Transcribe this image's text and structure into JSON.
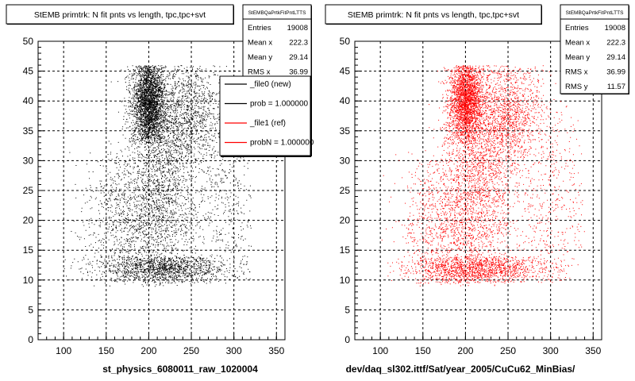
{
  "page": {
    "background": "#ffffff"
  },
  "chart_data": [
    {
      "type": "scatter",
      "title": "StEMB primtrk: N fit pnts vs length, tpc,tpc+svt",
      "xlabel": "st_physics_6080011_raw_1020004",
      "ylabel": "",
      "xlim": [
        70,
        360
      ],
      "ylim": [
        0,
        50
      ],
      "x_ticks": [
        100,
        150,
        200,
        250,
        300,
        350
      ],
      "y_ticks": [
        0,
        5,
        10,
        15,
        20,
        25,
        30,
        35,
        40,
        45,
        50
      ],
      "grid": true,
      "point_color": "#000000",
      "stats_box": {
        "name": "StEMBQaPrtkFitPntLTTS",
        "entries": [
          {
            "label": "Entries",
            "value": "19008"
          },
          {
            "label": "Mean x",
            "value": "222.3"
          },
          {
            "label": "Mean y",
            "value": "29.14"
          },
          {
            "label": "RMS x",
            "value": "36.99"
          }
        ]
      },
      "legend": {
        "placement": "top-right",
        "entries": [
          {
            "label": "_file0 (new)",
            "color": "#000000"
          },
          {
            "label": "prob = 1.000000",
            "color": "#000000"
          },
          {
            "label": "_file1 (ref)",
            "color": "#ff0000"
          },
          {
            "label": "probN = 1.000000",
            "color": "#ff0000"
          }
        ]
      },
      "series": [
        {
          "entries": 19008,
          "clusters": [
            {
              "x": 200,
              "y": 40,
              "sx": 10,
              "sy": 4,
              "weight": 0.33,
              "ymin": 33,
              "ymax": 46
            },
            {
              "x": 215,
              "y": 27,
              "sx": 22,
              "sy": 9,
              "weight": 0.22,
              "ymin": 9,
              "ymax": 46
            },
            {
              "x": 215,
              "y": 12,
              "sx": 40,
              "sy": 1.4,
              "weight": 0.17,
              "ymin": 9.5,
              "ymax": 14
            },
            {
              "x": 250,
              "y": 38,
              "sx": 22,
              "sy": 5,
              "weight": 0.13,
              "ymin": 28,
              "ymax": 46
            },
            {
              "x": 175,
              "y": 20,
              "sx": 25,
              "sy": 6,
              "weight": 0.1,
              "ymin": 9,
              "ymax": 32
            },
            {
              "x": 290,
              "y": 22,
              "sx": 20,
              "sy": 8,
              "weight": 0.05,
              "ymin": 10,
              "ymax": 36
            }
          ],
          "x_range": [
            100,
            320
          ]
        }
      ]
    },
    {
      "type": "scatter",
      "title": "StEMB primtrk: N fit pnts vs length, tpc,tpc+svt",
      "xlabel": "dev/daq_sl302.ittf/Sat/year_2005/CuCu62_MinBias/",
      "ylabel": "",
      "xlim": [
        70,
        360
      ],
      "ylim": [
        0,
        50
      ],
      "x_ticks": [
        100,
        150,
        200,
        250,
        300,
        350
      ],
      "y_ticks": [
        0,
        5,
        10,
        15,
        20,
        25,
        30,
        35,
        40,
        45,
        50
      ],
      "grid": true,
      "point_color": "#ff0000",
      "stats_box": {
        "name": "StEMBQaPrtkFitPntLTTS",
        "entries": [
          {
            "label": "Entries",
            "value": "19008"
          },
          {
            "label": "Mean x",
            "value": "222.3"
          },
          {
            "label": "Mean y",
            "value": "29.14"
          },
          {
            "label": "RMS x",
            "value": "36.99"
          },
          {
            "label": "RMS y",
            "value": "11.57"
          }
        ]
      },
      "series": [
        {
          "entries": 19008,
          "clusters": [
            {
              "x": 200,
              "y": 40,
              "sx": 10,
              "sy": 4,
              "weight": 0.3,
              "ymin": 33,
              "ymax": 46
            },
            {
              "x": 215,
              "y": 27,
              "sx": 22,
              "sy": 9,
              "weight": 0.22,
              "ymin": 9,
              "ymax": 46
            },
            {
              "x": 215,
              "y": 12,
              "sx": 40,
              "sy": 1.4,
              "weight": 0.17,
              "ymin": 9.5,
              "ymax": 14
            },
            {
              "x": 250,
              "y": 38,
              "sx": 22,
              "sy": 5,
              "weight": 0.15,
              "ymin": 28,
              "ymax": 46
            },
            {
              "x": 175,
              "y": 20,
              "sx": 25,
              "sy": 6,
              "weight": 0.1,
              "ymin": 9,
              "ymax": 32
            },
            {
              "x": 300,
              "y": 24,
              "sx": 25,
              "sy": 9,
              "weight": 0.06,
              "ymin": 10,
              "ymax": 40
            }
          ],
          "x_range": [
            100,
            340
          ]
        }
      ]
    }
  ]
}
